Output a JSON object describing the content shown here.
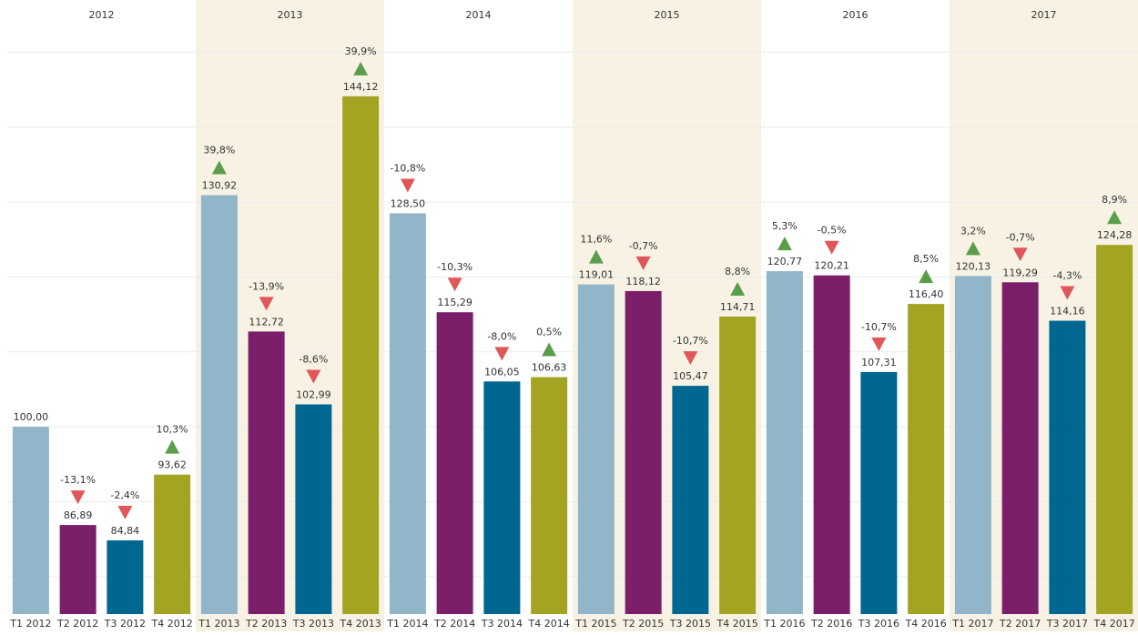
{
  "chart_data": {
    "type": "bar",
    "groups": [
      "2012",
      "2013",
      "2014",
      "2015",
      "2016",
      "2017"
    ],
    "group_band_color": "#f8f2e4",
    "categories": [
      "T1 2012",
      "T2 2012",
      "T3 2012",
      "T4 2012",
      "T1 2013",
      "T2 2013",
      "T3 2013",
      "T4 2013",
      "T1 2014",
      "T2 2014",
      "T3 2014",
      "T4 2014",
      "T1 2015",
      "T2 2015",
      "T3 2015",
      "T4 2015",
      "T1 2016",
      "T2 2016",
      "T3 2016",
      "T4 2016",
      "T1 2017",
      "T2 2017",
      "T3 2017",
      "T4 2017"
    ],
    "values": [
      100,
      86.89,
      84.84,
      93.62,
      130.92,
      112.72,
      102.99,
      144.12,
      128.5,
      115.29,
      106.05,
      106.63,
      119.01,
      118.12,
      105.47,
      114.71,
      120.77,
      120.21,
      107.31,
      116.4,
      120.13,
      119.29,
      114.16,
      124.28
    ],
    "value_labels": [
      "100,00",
      "86,89",
      "84,84",
      "93,62",
      "130,92",
      "112,72",
      "102,99",
      "144,12",
      "128,50",
      "115,29",
      "106,05",
      "106,63",
      "119,01",
      "118,12",
      "105,47",
      "114,71",
      "120,77",
      "120,21",
      "107,31",
      "116,40",
      "120,13",
      "119,29",
      "114,16",
      "124,28"
    ],
    "changes": [
      null,
      -13.1,
      -2.4,
      10.3,
      39.8,
      -13.9,
      -8.6,
      39.9,
      -10.8,
      -10.3,
      -8.0,
      0.5,
      11.6,
      -0.7,
      -10.7,
      8.8,
      5.3,
      -0.5,
      -10.7,
      8.5,
      3.2,
      -0.7,
      -4.3,
      8.9
    ],
    "change_labels": [
      null,
      "-13,1%",
      "-2,4%",
      "10,3%",
      "39,8%",
      "-13,9%",
      "-8,6%",
      "39,9%",
      "-10,8%",
      "-10,3%",
      "-8,0%",
      "0,5%",
      "11,6%",
      "-0,7%",
      "-10,7%",
      "8,8%",
      "5,3%",
      "-0,5%",
      "-10,7%",
      "8,5%",
      "3,2%",
      "-0,7%",
      "-4,3%",
      "8,9%"
    ],
    "bar_colors": [
      "#91b5c9",
      "#7b1f6a",
      "#006890",
      "#a3a522"
    ],
    "up_color": "#5a9e4b",
    "down_color": "#e05759",
    "ylim": [
      75,
      156
    ],
    "yticks": [
      80,
      90,
      100,
      110,
      120,
      130,
      140,
      150
    ],
    "grid": true
  }
}
